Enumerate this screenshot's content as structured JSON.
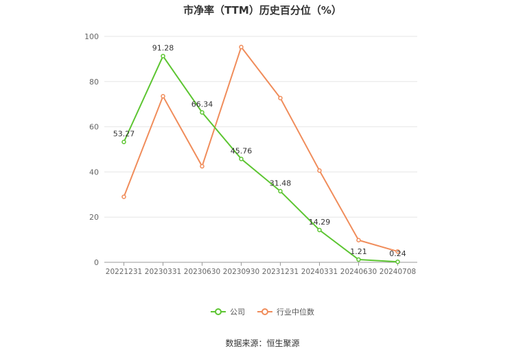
{
  "chart_data": {
    "type": "line",
    "title": "市净率（TTM）历史百分位（%）",
    "xlabel": "",
    "ylabel": "",
    "categories": [
      "20221231",
      "20230331",
      "20230630",
      "20230930",
      "20231231",
      "20240331",
      "20240630",
      "20240708"
    ],
    "ylim": [
      0,
      100
    ],
    "yticks": [
      0,
      20,
      40,
      60,
      80,
      100
    ],
    "grid": true,
    "legend_position": "bottom",
    "series": [
      {
        "name": "公司",
        "color": "#5cc531",
        "values": [
          53.27,
          91.28,
          66.34,
          45.76,
          31.48,
          14.29,
          1.21,
          0.24
        ],
        "labels": [
          "53.27",
          "91.28",
          "66.34",
          "45.76",
          "31.48",
          "14.29",
          "1.21",
          "0.24"
        ]
      },
      {
        "name": "行业中位数",
        "color": "#f08c5a",
        "values": [
          29,
          73.5,
          42.5,
          95.3,
          72.7,
          40.6,
          9.8,
          4.8
        ]
      }
    ]
  },
  "source_text": "数据来源：恒生聚源"
}
